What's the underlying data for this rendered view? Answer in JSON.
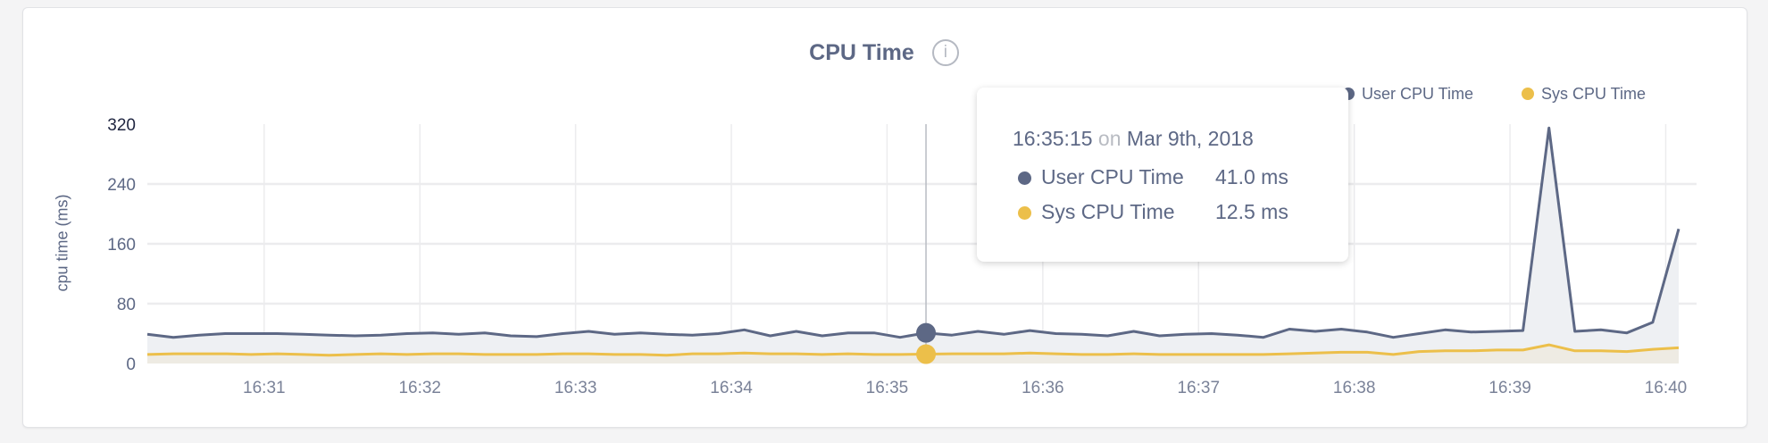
{
  "card": {
    "title": "CPU Time",
    "info_icon": "info-circle-icon",
    "tooltip": {
      "time": "16:35:15",
      "on": "on",
      "date": "Mar 9th, 2018",
      "rows": [
        {
          "label": "User CPU Time",
          "value": "41.0 ms"
        },
        {
          "label": "Sys CPU Time",
          "value": "12.5 ms"
        }
      ]
    }
  },
  "chart_data": {
    "type": "area",
    "title": "CPU Time",
    "ylabel": "cpu time (ms)",
    "xlabel": "",
    "ylim": [
      0,
      320
    ],
    "yticks": [
      "0",
      "80",
      "160",
      "240",
      "320"
    ],
    "xticks": [
      "16:31",
      "16:32",
      "16:33",
      "16:34",
      "16:35",
      "16:36",
      "16:37",
      "16:38",
      "16:39",
      "16:40"
    ],
    "x_start": "16:30:15",
    "x_interval_seconds": 10,
    "grid": true,
    "legend_position": "top-right",
    "hover_index": 30,
    "series": [
      {
        "name": "User CPU Time",
        "color": "#5d6885",
        "fill": "#eef0f3",
        "values": [
          39,
          35,
          38,
          40,
          40,
          40,
          39,
          38,
          37,
          38,
          40,
          41,
          39,
          41,
          37,
          36,
          40,
          43,
          39,
          41,
          39,
          38,
          40,
          45,
          37,
          43,
          37,
          41,
          41,
          35,
          41.0,
          38,
          43,
          39,
          44,
          40,
          39,
          37,
          43,
          37,
          39,
          40,
          38,
          35,
          46,
          43,
          46,
          42,
          35,
          40,
          45,
          42,
          43,
          44,
          315,
          43,
          45,
          41,
          55,
          180
        ]
      },
      {
        "name": "Sys CPU Time",
        "color": "#ecbf4a",
        "fill": "#eeebe3",
        "values": [
          12,
          13,
          13,
          13,
          12,
          13,
          12,
          11,
          12,
          13,
          12,
          13,
          13,
          12,
          12,
          12,
          13,
          13,
          12,
          12,
          11,
          13,
          13,
          14,
          13,
          13,
          12,
          13,
          12,
          12,
          12.5,
          13,
          13,
          13,
          14,
          13,
          12,
          12,
          13,
          12,
          12,
          12,
          12,
          12,
          13,
          14,
          15,
          15,
          12,
          16,
          17,
          17,
          18,
          18,
          25,
          17,
          17,
          16,
          19,
          21
        ]
      }
    ]
  }
}
